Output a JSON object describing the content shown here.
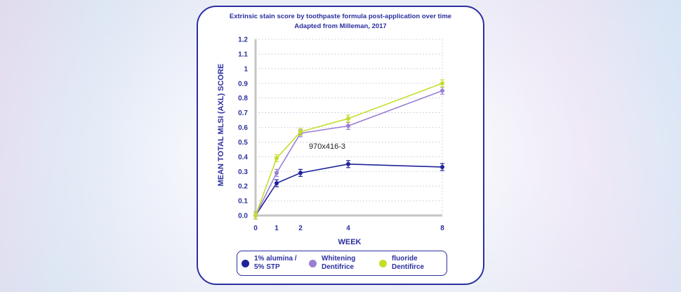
{
  "watermark": "970x416-3",
  "colors": {
    "frame": "#2b2fa0",
    "series": [
      "#1f2399",
      "#9b7fd6",
      "#c6dd2a"
    ]
  },
  "chart_data": {
    "type": "line",
    "title": "Extrinsic stain score by toothpaste formula post-application over time",
    "subtitle": "Adapted from Milleman, 2017",
    "xlabel": "WEEK",
    "ylabel": "MEAN TOTAL MLSI (AXL) SCORE",
    "x": [
      0,
      1,
      2,
      4,
      8
    ],
    "xticks": [
      "0",
      "1",
      "2",
      "4",
      "8"
    ],
    "ylim": [
      0.0,
      1.2
    ],
    "yticks": [
      "0.0",
      "0.1",
      "0.2",
      "0.3",
      "0.4",
      "0.5",
      "0.6",
      "0.7",
      "0.8",
      "0.9",
      "1",
      "1.1",
      "1.2"
    ],
    "grid": "dotted horizontal",
    "legend_position": "bottom",
    "series": [
      {
        "name": "1% alumina / 5% STP",
        "values": [
          0.0,
          0.22,
          0.29,
          0.35,
          0.33
        ]
      },
      {
        "name": "Whitening Dentifrice",
        "values": [
          0.0,
          0.29,
          0.56,
          0.61,
          0.85
        ]
      },
      {
        "name": "fluoride Dentifirce",
        "values": [
          0.0,
          0.39,
          0.57,
          0.66,
          0.9
        ]
      }
    ]
  },
  "legend": [
    {
      "label": "1% alumina /\n5% STP"
    },
    {
      "label": "Whitening\nDentifrice"
    },
    {
      "label": "fluoride\nDentifirce"
    }
  ]
}
